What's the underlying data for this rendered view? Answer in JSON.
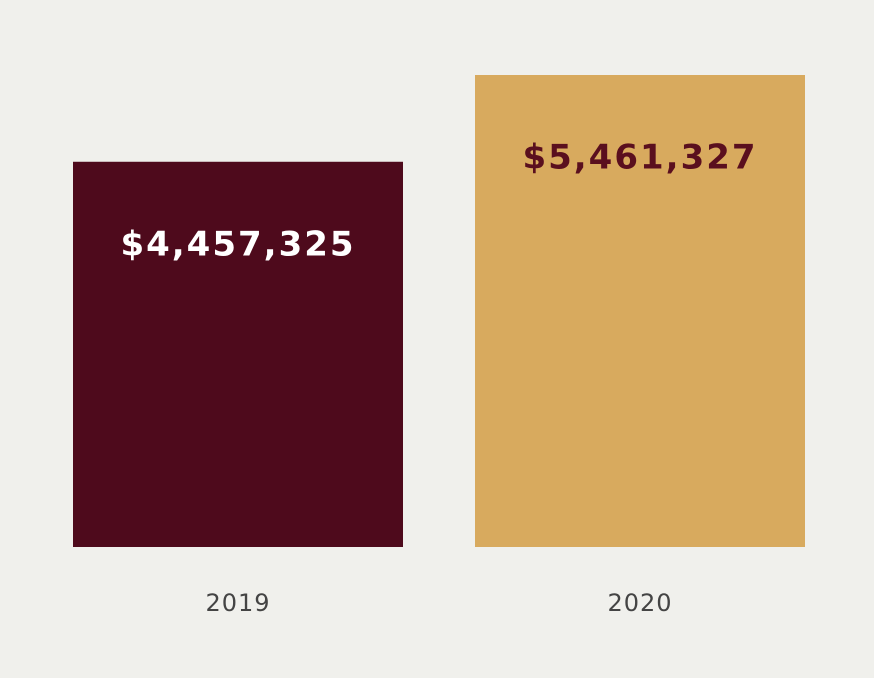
{
  "chart_data": {
    "type": "bar",
    "categories": [
      "2019",
      "2020"
    ],
    "values": [
      4457325,
      5461327
    ],
    "value_labels": [
      "$4,457,325",
      "$5,461,327"
    ],
    "colors": [
      "#4e0a1c",
      "#d8aa5e"
    ],
    "value_label_colors": [
      "#ffffff",
      "#5a0f1e"
    ]
  }
}
